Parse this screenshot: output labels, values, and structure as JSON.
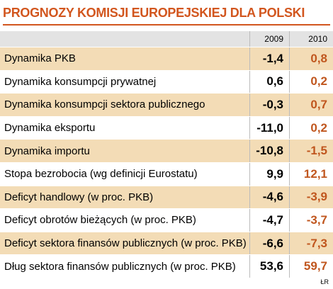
{
  "header": {
    "title": "PROGNOZY KOMISJI EUROPEJSKIEJ DLA POLSKI"
  },
  "table": {
    "columns": [
      "2009",
      "2010"
    ],
    "rows": [
      [
        "Dynamika PKB",
        "-1,4",
        "0,8"
      ],
      [
        "Dynamika konsumpcji prywatnej",
        "0,6",
        "0,2"
      ],
      [
        "Dynamika konsumpcji sektora publicznego",
        "-0,3",
        "0,7"
      ],
      [
        "Dynamika eksportu",
        "-11,0",
        "0,2"
      ],
      [
        "Dynamika importu",
        "-10,8",
        "-1,5"
      ],
      [
        "Stopa bezrobocia (wg definicji Eurostatu)",
        "9,9",
        "12,1"
      ],
      [
        "Deficyt handlowy (w proc. PKB)",
        "-4,6",
        "-3,9"
      ],
      [
        "Deficyt obrotów bieżących (w proc. PKB)",
        "-4,7",
        "-3,7"
      ],
      [
        "Deficyt sektora finansów publicznych (w proc. PKB)",
        "-6,6",
        "-7,3"
      ],
      [
        "Dług sektora finansów publicznych (w proc. PKB)",
        "53,6",
        "59,7"
      ]
    ]
  },
  "footer": {
    "source": "ŁR"
  }
}
